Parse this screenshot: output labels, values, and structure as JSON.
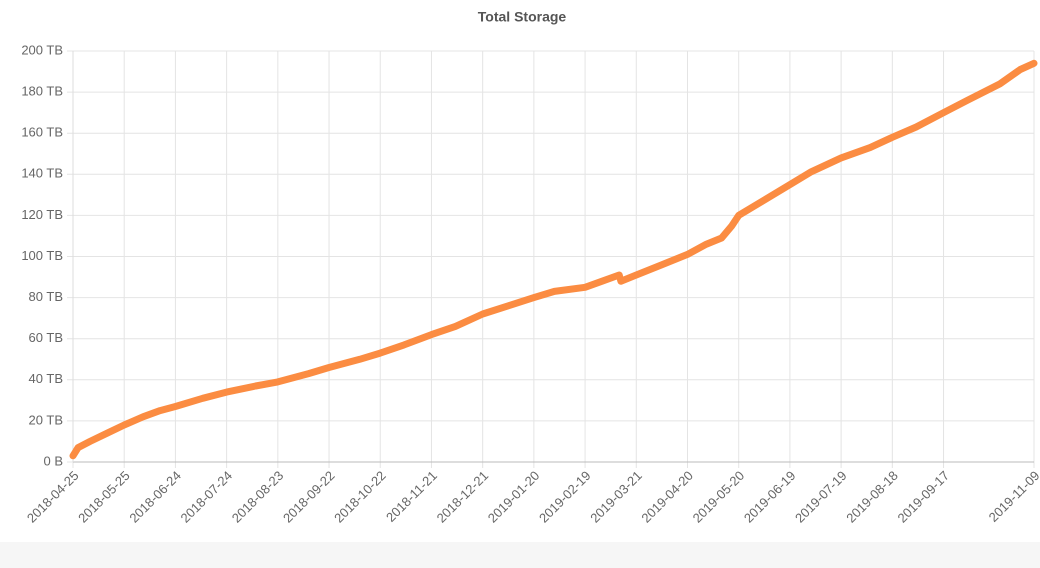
{
  "chart_data": {
    "type": "line",
    "title": "Total Storage",
    "x": [
      "2018-04-25",
      "2018-04-28",
      "2018-05-05",
      "2018-05-15",
      "2018-05-25",
      "2018-06-05",
      "2018-06-15",
      "2018-06-24",
      "2018-07-10",
      "2018-07-24",
      "2018-08-10",
      "2018-08-23",
      "2018-09-10",
      "2018-09-22",
      "2018-10-10",
      "2018-10-22",
      "2018-11-05",
      "2018-11-21",
      "2018-12-05",
      "2018-12-21",
      "2019-01-05",
      "2019-01-20",
      "2019-02-01",
      "2019-02-19",
      "2019-03-01",
      "2019-03-11",
      "2019-03-12",
      "2019-03-21",
      "2019-04-05",
      "2019-04-20",
      "2019-05-01",
      "2019-05-10",
      "2019-05-16",
      "2019-05-20",
      "2019-06-05",
      "2019-06-19",
      "2019-07-01",
      "2019-07-19",
      "2019-08-05",
      "2019-08-18",
      "2019-09-01",
      "2019-09-17",
      "2019-10-01",
      "2019-10-20",
      "2019-11-01",
      "2019-11-09"
    ],
    "values": [
      3,
      7,
      10,
      14,
      18,
      22,
      25,
      27,
      31,
      34,
      37,
      39,
      43,
      46,
      50,
      53,
      57,
      62,
      66,
      72,
      76,
      80,
      83,
      85,
      88,
      91,
      88,
      91,
      96,
      101,
      106,
      109,
      115,
      120,
      128,
      135,
      141,
      148,
      153,
      158,
      163,
      170,
      176,
      184,
      191,
      194
    ],
    "color": "#fb8c42",
    "xlim": [
      "2018-04-25",
      "2019-11-09"
    ],
    "xticks": [
      "2018-04-25",
      "2018-05-25",
      "2018-06-24",
      "2018-07-24",
      "2018-08-23",
      "2018-09-22",
      "2018-10-22",
      "2018-11-21",
      "2018-12-21",
      "2019-01-20",
      "2019-02-19",
      "2019-03-21",
      "2019-04-20",
      "2019-05-20",
      "2019-06-19",
      "2019-07-19",
      "2019-08-18",
      "2019-09-17",
      "2019-11-09"
    ],
    "ylim": [
      0,
      200
    ],
    "yticks": [
      {
        "value": 0,
        "label": "0 B"
      },
      {
        "value": 20,
        "label": "20 TB"
      },
      {
        "value": 40,
        "label": "40 TB"
      },
      {
        "value": 60,
        "label": "60 TB"
      },
      {
        "value": 80,
        "label": "80 TB"
      },
      {
        "value": 100,
        "label": "100 TB"
      },
      {
        "value": 120,
        "label": "120 TB"
      },
      {
        "value": 140,
        "label": "140 TB"
      },
      {
        "value": 160,
        "label": "160 TB"
      },
      {
        "value": 180,
        "label": "180 TB"
      },
      {
        "value": 200,
        "label": "200 TB"
      }
    ],
    "grid": true
  }
}
